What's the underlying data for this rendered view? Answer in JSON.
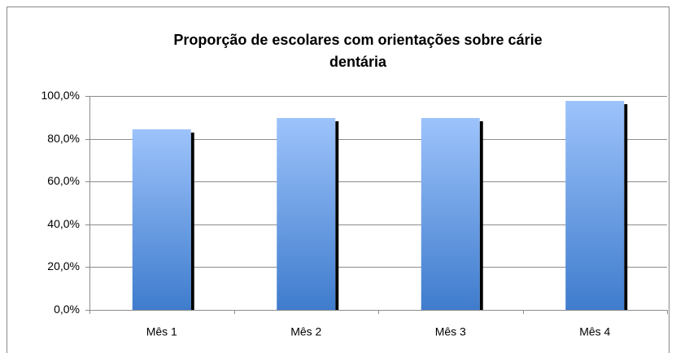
{
  "chart_data": {
    "type": "bar",
    "title": [
      "Proporção de escolares com orientações sobre cárie",
      "dentária"
    ],
    "categories": [
      "Mês 1",
      "Mês 2",
      "Mês 3",
      "Mês 4"
    ],
    "values": [
      84.4,
      89.7,
      89.7,
      97.7
    ],
    "color": "#5b8fd9",
    "ylim": [
      0,
      100
    ],
    "yticks": [
      {
        "value": 0,
        "label": "0,0%"
      },
      {
        "value": 20,
        "label": "20,0%"
      },
      {
        "value": 40,
        "label": "40,0%"
      },
      {
        "value": 60,
        "label": "60,0%"
      },
      {
        "value": 80,
        "label": "80,0%"
      },
      {
        "value": 100,
        "label": "100,0%"
      }
    ],
    "grid": true
  }
}
